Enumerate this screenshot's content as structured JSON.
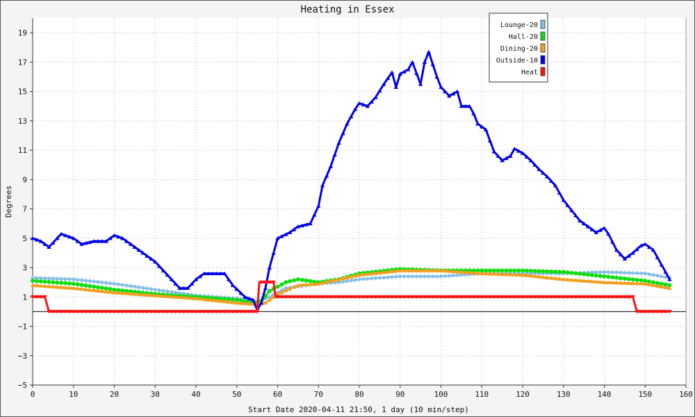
{
  "chart_data": {
    "type": "line",
    "title": "Heating in Essex",
    "xlabel": "Start Date 2020-04-11 21:50, 1 day (10 min/step)",
    "ylabel": "Degrees",
    "xlim": [
      0,
      160
    ],
    "ylim": [
      -5,
      20
    ],
    "xticks": [
      0,
      10,
      20,
      30,
      40,
      50,
      60,
      70,
      80,
      90,
      100,
      110,
      120,
      130,
      140,
      150,
      160
    ],
    "yticks": [
      -5,
      -3,
      -1,
      1,
      3,
      5,
      7,
      9,
      11,
      13,
      15,
      17,
      19
    ],
    "grid": true,
    "legend_position": "top-right",
    "baseline": 0,
    "series": [
      {
        "name": "Lounge-20",
        "color": "#87bfe6",
        "marker": "diamond",
        "points": [
          [
            0,
            2.3
          ],
          [
            10,
            2.2
          ],
          [
            20,
            1.9
          ],
          [
            30,
            1.5
          ],
          [
            40,
            1.1
          ],
          [
            50,
            0.9
          ],
          [
            55,
            0.7
          ],
          [
            58,
            1.0
          ],
          [
            62,
            1.6
          ],
          [
            70,
            1.9
          ],
          [
            75,
            2.0
          ],
          [
            80,
            2.2
          ],
          [
            90,
            2.4
          ],
          [
            100,
            2.4
          ],
          [
            110,
            2.6
          ],
          [
            120,
            2.6
          ],
          [
            130,
            2.6
          ],
          [
            140,
            2.7
          ],
          [
            150,
            2.6
          ],
          [
            156,
            2.3
          ]
        ]
      },
      {
        "name": "Hall-20",
        "color": "#11dd11",
        "marker": "circle",
        "points": [
          [
            0,
            2.1
          ],
          [
            10,
            1.9
          ],
          [
            20,
            1.5
          ],
          [
            30,
            1.2
          ],
          [
            40,
            1.0
          ],
          [
            50,
            0.8
          ],
          [
            54,
            0.6
          ],
          [
            56,
            0.7
          ],
          [
            58,
            1.4
          ],
          [
            62,
            2.0
          ],
          [
            65,
            2.2
          ],
          [
            70,
            2.0
          ],
          [
            75,
            2.2
          ],
          [
            80,
            2.6
          ],
          [
            90,
            2.9
          ],
          [
            100,
            2.8
          ],
          [
            110,
            2.8
          ],
          [
            120,
            2.8
          ],
          [
            130,
            2.7
          ],
          [
            140,
            2.4
          ],
          [
            150,
            2.1
          ],
          [
            156,
            1.8
          ]
        ]
      },
      {
        "name": "Dining-20",
        "color": "#f0a020",
        "marker": "triangle",
        "points": [
          [
            0,
            1.8
          ],
          [
            10,
            1.6
          ],
          [
            20,
            1.3
          ],
          [
            30,
            1.1
          ],
          [
            40,
            0.9
          ],
          [
            50,
            0.6
          ],
          [
            55,
            0.5
          ],
          [
            57,
            0.6
          ],
          [
            60,
            1.2
          ],
          [
            65,
            1.8
          ],
          [
            70,
            1.9
          ],
          [
            75,
            2.2
          ],
          [
            80,
            2.5
          ],
          [
            90,
            2.8
          ],
          [
            100,
            2.8
          ],
          [
            110,
            2.6
          ],
          [
            120,
            2.5
          ],
          [
            130,
            2.2
          ],
          [
            140,
            2.0
          ],
          [
            150,
            1.9
          ],
          [
            156,
            1.6
          ]
        ]
      },
      {
        "name": "Outside-10",
        "color": "#0000ee",
        "marker": "triangle",
        "points": [
          [
            0,
            5.0
          ],
          [
            2,
            4.8
          ],
          [
            4,
            4.4
          ],
          [
            7,
            5.3
          ],
          [
            10,
            5.0
          ],
          [
            12,
            4.6
          ],
          [
            15,
            4.8
          ],
          [
            18,
            4.8
          ],
          [
            20,
            5.2
          ],
          [
            22,
            5.0
          ],
          [
            25,
            4.4
          ],
          [
            28,
            3.8
          ],
          [
            30,
            3.4
          ],
          [
            33,
            2.5
          ],
          [
            36,
            1.6
          ],
          [
            38,
            1.6
          ],
          [
            40,
            2.2
          ],
          [
            42,
            2.6
          ],
          [
            45,
            2.6
          ],
          [
            47,
            2.6
          ],
          [
            49,
            1.8
          ],
          [
            52,
            1.0
          ],
          [
            54,
            0.8
          ],
          [
            55,
            0.1
          ],
          [
            56,
            0.6
          ],
          [
            57,
            1.6
          ],
          [
            58,
            3.0
          ],
          [
            60,
            5.0
          ],
          [
            63,
            5.4
          ],
          [
            65,
            5.8
          ],
          [
            68,
            6.0
          ],
          [
            70,
            7.2
          ],
          [
            71,
            8.6
          ],
          [
            73,
            9.9
          ],
          [
            75,
            11.5
          ],
          [
            77,
            12.8
          ],
          [
            79,
            13.8
          ],
          [
            80,
            14.2
          ],
          [
            82,
            14.0
          ],
          [
            84,
            14.6
          ],
          [
            86,
            15.5
          ],
          [
            88,
            16.3
          ],
          [
            89,
            15.3
          ],
          [
            90,
            16.2
          ],
          [
            92,
            16.5
          ],
          [
            93,
            17.0
          ],
          [
            95,
            15.5
          ],
          [
            96,
            17.0
          ],
          [
            97,
            17.7
          ],
          [
            99,
            16.0
          ],
          [
            100,
            15.3
          ],
          [
            102,
            14.7
          ],
          [
            104,
            15.0
          ],
          [
            105,
            14.0
          ],
          [
            107,
            14.0
          ],
          [
            108,
            13.5
          ],
          [
            109,
            12.8
          ],
          [
            111,
            12.4
          ],
          [
            113,
            10.9
          ],
          [
            115,
            10.3
          ],
          [
            117,
            10.6
          ],
          [
            118,
            11.1
          ],
          [
            120,
            10.8
          ],
          [
            122,
            10.3
          ],
          [
            124,
            9.7
          ],
          [
            126,
            9.2
          ],
          [
            128,
            8.6
          ],
          [
            130,
            7.6
          ],
          [
            132,
            6.9
          ],
          [
            134,
            6.2
          ],
          [
            136,
            5.8
          ],
          [
            138,
            5.4
          ],
          [
            140,
            5.7
          ],
          [
            141,
            5.3
          ],
          [
            143,
            4.2
          ],
          [
            145,
            3.6
          ],
          [
            147,
            4.0
          ],
          [
            149,
            4.5
          ],
          [
            150,
            4.6
          ],
          [
            152,
            4.2
          ],
          [
            154,
            3.2
          ],
          [
            156,
            2.2
          ]
        ]
      },
      {
        "name": "Heat",
        "color": "#ff1111",
        "marker": "triangle-down",
        "points": [
          [
            0,
            1
          ],
          [
            3,
            1
          ],
          [
            4,
            0
          ],
          [
            55,
            0
          ],
          [
            55.5,
            2
          ],
          [
            59,
            2
          ],
          [
            59.5,
            1
          ],
          [
            147,
            1
          ],
          [
            148,
            0
          ],
          [
            156,
            0
          ]
        ]
      }
    ]
  }
}
